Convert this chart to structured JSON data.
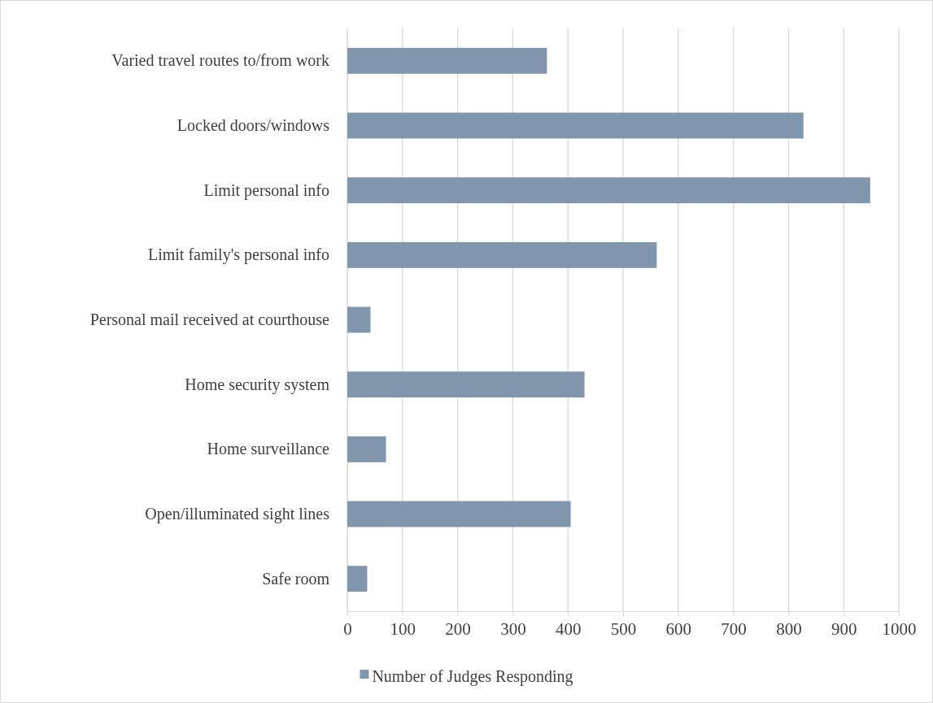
{
  "chart_data": {
    "type": "bar",
    "orientation": "horizontal",
    "categories": [
      "Varied travel routes to/from work",
      "Locked doors/windows",
      "Limit personal info",
      "Limit family's personal info",
      "Personal mail received at courthouse",
      "Home security system",
      "Home surveillance",
      "Open/illuminated sight lines",
      "Safe room"
    ],
    "series": [
      {
        "name": "Number of Judges Responding",
        "color": "#7f96ad",
        "values": [
          362,
          827,
          948,
          561,
          42,
          430,
          70,
          405,
          36
        ]
      }
    ],
    "xlim": [
      0,
      1000
    ],
    "xticks": [
      0,
      100,
      200,
      300,
      400,
      500,
      600,
      700,
      800,
      900,
      1000
    ],
    "grid": "x",
    "legend": "bottom"
  }
}
